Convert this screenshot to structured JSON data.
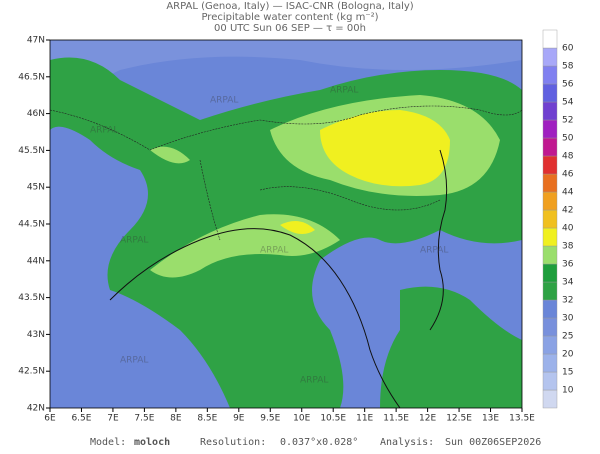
{
  "header": {
    "line1": "ARPAL (Genoa, Italy)  —  ISAC-CNR (Bologna, Italy)",
    "line2": "Precipitable water content (kg m⁻²)",
    "line3": "00 UTC Sun 06 SEP  —  τ = 00h"
  },
  "map": {
    "xticks": [
      "6E",
      "6.5E",
      "7E",
      "7.5E",
      "8E",
      "8.5E",
      "9E",
      "9.5E",
      "10E",
      "10.5E",
      "11E",
      "11.5E",
      "12E",
      "12.5E",
      "13E",
      "13.5E"
    ],
    "yticks": [
      "42N",
      "42.5N",
      "43N",
      "43.5N",
      "44N",
      "44.5N",
      "45N",
      "45.5N",
      "46N",
      "46.5N",
      "47N"
    ],
    "watermark": "ARPAL"
  },
  "colorbar": {
    "levels": [
      10,
      15,
      20,
      25,
      30,
      32,
      34,
      36,
      38,
      40,
      42,
      44,
      46,
      48,
      50,
      52,
      54,
      56,
      58,
      60
    ],
    "colors": [
      "#d0d8f0",
      "#b4c4ee",
      "#9cb2ea",
      "#8aa2e4",
      "#7890dc",
      "#6a86d8",
      "#2fa245",
      "#1e9e3c",
      "#9ade6c",
      "#f0f020",
      "#f0c020",
      "#f0a020",
      "#e87020",
      "#e03030",
      "#c01890",
      "#a020c0",
      "#7040d0",
      "#6060e0",
      "#8080f0",
      "#a8a8f8",
      "#ffffff"
    ]
  },
  "footer": {
    "model_label": "Model:",
    "model": "moloch",
    "resolution_label": "Resolution:",
    "resolution": "0.037°x0.028°",
    "analysis_label": "Analysis:",
    "analysis": "Sun 00Z06SEP2026"
  }
}
